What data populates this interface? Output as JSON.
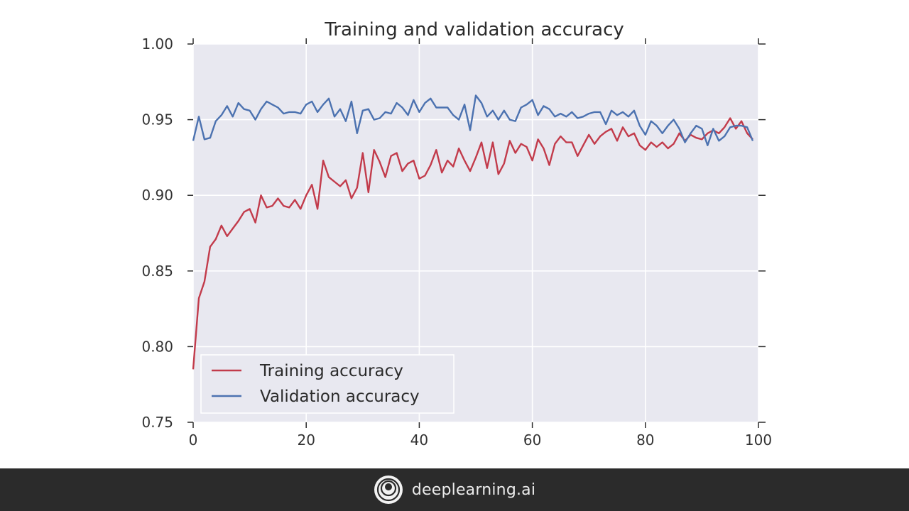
{
  "chart_data": {
    "type": "line",
    "title": "Training and validation accuracy",
    "xlabel": "",
    "ylabel": "",
    "xlim": [
      0,
      100
    ],
    "ylim": [
      0.75,
      1.0
    ],
    "xticks": [
      0,
      20,
      40,
      60,
      80,
      100
    ],
    "yticks": [
      0.75,
      0.8,
      0.85,
      0.9,
      0.95,
      1.0
    ],
    "xtick_labels": [
      "0",
      "20",
      "40",
      "60",
      "80",
      "100"
    ],
    "ytick_labels": [
      "0.75",
      "0.80",
      "0.85",
      "0.90",
      "0.95",
      "1.00"
    ],
    "grid": true,
    "legend_position": "lower-left",
    "x": [
      0,
      1,
      2,
      3,
      4,
      5,
      6,
      7,
      8,
      9,
      10,
      11,
      12,
      13,
      14,
      15,
      16,
      17,
      18,
      19,
      20,
      21,
      22,
      23,
      24,
      25,
      26,
      27,
      28,
      29,
      30,
      31,
      32,
      33,
      34,
      35,
      36,
      37,
      38,
      39,
      40,
      41,
      42,
      43,
      44,
      45,
      46,
      47,
      48,
      49,
      50,
      51,
      52,
      53,
      54,
      55,
      56,
      57,
      58,
      59,
      60,
      61,
      62,
      63,
      64,
      65,
      66,
      67,
      68,
      69,
      70,
      71,
      72,
      73,
      74,
      75,
      76,
      77,
      78,
      79,
      80,
      81,
      82,
      83,
      84,
      85,
      86,
      87,
      88,
      89,
      90,
      91,
      92,
      93,
      94,
      95,
      96,
      97,
      98,
      99
    ],
    "series": [
      {
        "name": "Training accuracy",
        "color": "#c23b4b",
        "values": [
          0.785,
          0.832,
          0.843,
          0.866,
          0.871,
          0.88,
          0.873,
          0.878,
          0.883,
          0.889,
          0.891,
          0.882,
          0.9,
          0.892,
          0.893,
          0.898,
          0.893,
          0.892,
          0.897,
          0.891,
          0.9,
          0.907,
          0.891,
          0.923,
          0.912,
          0.909,
          0.906,
          0.91,
          0.898,
          0.905,
          0.928,
          0.902,
          0.93,
          0.922,
          0.912,
          0.926,
          0.928,
          0.916,
          0.921,
          0.923,
          0.911,
          0.913,
          0.92,
          0.93,
          0.915,
          0.923,
          0.919,
          0.931,
          0.923,
          0.916,
          0.925,
          0.935,
          0.918,
          0.935,
          0.914,
          0.921,
          0.936,
          0.928,
          0.934,
          0.932,
          0.923,
          0.937,
          0.931,
          0.92,
          0.934,
          0.939,
          0.935,
          0.935,
          0.926,
          0.933,
          0.94,
          0.934,
          0.939,
          0.942,
          0.944,
          0.936,
          0.945,
          0.939,
          0.941,
          0.933,
          0.93,
          0.935,
          0.932,
          0.935,
          0.931,
          0.934,
          0.941,
          0.936,
          0.94,
          0.938,
          0.937,
          0.941,
          0.943,
          0.941,
          0.945,
          0.951,
          0.944,
          0.949,
          0.941,
          0.937
        ]
      },
      {
        "name": "Validation accuracy",
        "color": "#4c72b0",
        "values": [
          0.936,
          0.952,
          0.937,
          0.938,
          0.949,
          0.953,
          0.959,
          0.952,
          0.961,
          0.957,
          0.956,
          0.95,
          0.957,
          0.962,
          0.96,
          0.958,
          0.954,
          0.955,
          0.955,
          0.954,
          0.96,
          0.962,
          0.955,
          0.96,
          0.964,
          0.952,
          0.957,
          0.949,
          0.962,
          0.941,
          0.956,
          0.957,
          0.95,
          0.951,
          0.955,
          0.954,
          0.961,
          0.958,
          0.953,
          0.963,
          0.955,
          0.961,
          0.964,
          0.958,
          0.958,
          0.958,
          0.953,
          0.95,
          0.96,
          0.943,
          0.966,
          0.961,
          0.952,
          0.956,
          0.95,
          0.956,
          0.95,
          0.949,
          0.958,
          0.96,
          0.963,
          0.953,
          0.959,
          0.957,
          0.952,
          0.954,
          0.952,
          0.955,
          0.951,
          0.952,
          0.954,
          0.955,
          0.955,
          0.947,
          0.956,
          0.953,
          0.955,
          0.952,
          0.956,
          0.946,
          0.94,
          0.949,
          0.946,
          0.941,
          0.946,
          0.95,
          0.944,
          0.935,
          0.941,
          0.946,
          0.944,
          0.933,
          0.944,
          0.936,
          0.939,
          0.945,
          0.946,
          0.946,
          0.945,
          0.936
        ]
      }
    ]
  },
  "footer": {
    "brand_text": "deeplearning.ai",
    "background": "#2b2b2b"
  },
  "colors": {
    "plot_background": "#e8e8f0",
    "grid": "#ffffff",
    "axis_text": "#333333"
  }
}
